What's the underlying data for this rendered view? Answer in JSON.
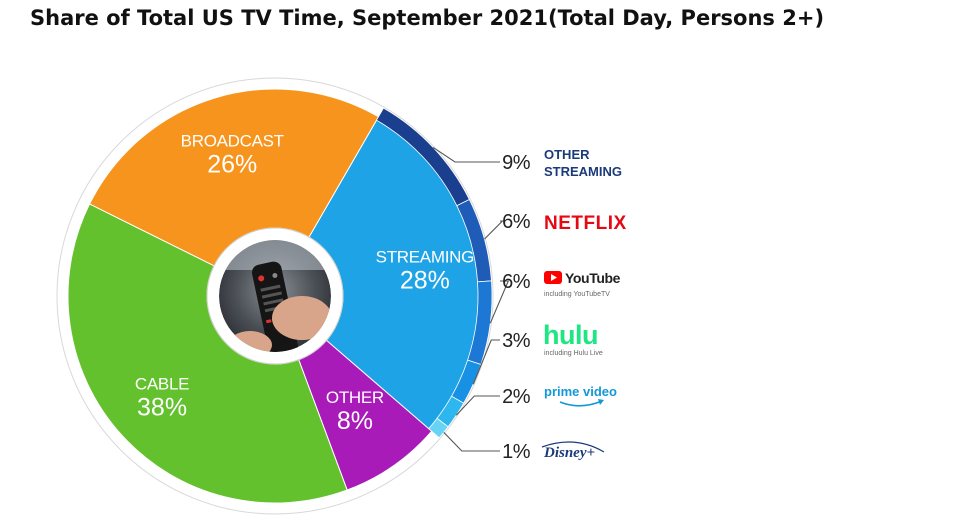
{
  "page": {
    "title": "Share of Total US TV Time, September 2021(Total Day, Persons 2+)"
  },
  "chart_data": {
    "type": "pie",
    "style": "donut",
    "slices": [
      {
        "name": "STREAMING",
        "value": 28,
        "label": "28%",
        "color": "#1ea3e6"
      },
      {
        "name": "OTHER",
        "value": 8,
        "label": "8%",
        "color": "#a81bb8"
      },
      {
        "name": "CABLE",
        "value": 38,
        "label": "38%",
        "color": "#62c12d"
      },
      {
        "name": "BROADCAST",
        "value": 26,
        "label": "26%",
        "color": "#f7941d"
      }
    ],
    "streaming_breakdown": [
      {
        "name": "OTHER STREAMING",
        "value": 9,
        "label": "9%",
        "color": "#1b3f8f",
        "text_color": "#1b3a7a"
      },
      {
        "name": "NETFLIX",
        "value": 6,
        "label": "6%",
        "color": "#1f5cb8",
        "text_color": "#e50914"
      },
      {
        "name": "YouTube",
        "sub": "including YouTubeTV",
        "value": 6,
        "label": "6%",
        "color": "#1c78d4",
        "text_color": "#222222"
      },
      {
        "name": "hulu",
        "sub": "including Hulu Live",
        "value": 3,
        "label": "3%",
        "color": "#1890e4",
        "text_color": "#1ce783"
      },
      {
        "name": "prime video",
        "value": 2,
        "label": "2%",
        "color": "#2eb6ee",
        "text_color": "#1399d6"
      },
      {
        "name": "Disney+",
        "value": 1,
        "label": "1%",
        "color": "#67d3f5",
        "text_color": "#1b3a7a"
      }
    ]
  }
}
